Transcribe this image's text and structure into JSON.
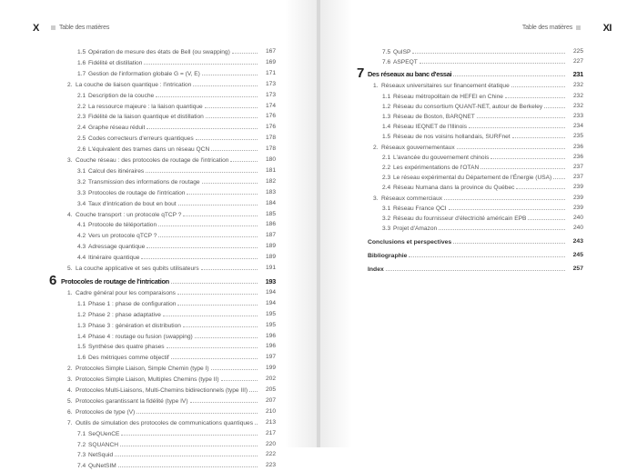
{
  "left_page": {
    "folio": "X",
    "running_head": "Table des matières",
    "entries": [
      {
        "level": 2,
        "num": "1.5",
        "title": "Opération de mesure des états de Bell (ou swapping)",
        "page": "167"
      },
      {
        "level": 2,
        "num": "1.6",
        "title": "Fidélité et distillation",
        "page": "169"
      },
      {
        "level": 2,
        "num": "1.7",
        "title": "Gestion de l'information globale G = (V, E)",
        "page": "171"
      },
      {
        "level": 1,
        "num": "2.",
        "title": "La couche de liaison quantique : l'intrication",
        "page": "173"
      },
      {
        "level": 2,
        "num": "2.1",
        "title": "Description de la couche",
        "page": "173"
      },
      {
        "level": 2,
        "num": "2.2",
        "title": "La ressource majeure : la liaison quantique",
        "page": "174"
      },
      {
        "level": 2,
        "num": "2.3",
        "title": "Fidélité de la liaison quantique et distillation",
        "page": "176"
      },
      {
        "level": 2,
        "num": "2.4",
        "title": "Graphe réseau réduit",
        "page": "176"
      },
      {
        "level": 2,
        "num": "2.5",
        "title": "Codes correcteurs d'erreurs quantiques",
        "page": "178"
      },
      {
        "level": 2,
        "num": "2.6",
        "title": "L'équivalent des trames dans un réseau QCN",
        "page": "178"
      },
      {
        "level": 1,
        "num": "3.",
        "title": "Couche réseau : des protocoles de routage de l'intrication",
        "page": "180"
      },
      {
        "level": 2,
        "num": "3.1",
        "title": "Calcul des itinéraires",
        "page": "181"
      },
      {
        "level": 2,
        "num": "3.2",
        "title": "Transmission des informations de routage",
        "page": "182"
      },
      {
        "level": 2,
        "num": "3.3",
        "title": "Protocoles de routage de l'intrication",
        "page": "183"
      },
      {
        "level": 2,
        "num": "3.4",
        "title": "Taux d'intrication de bout en bout",
        "page": "184"
      },
      {
        "level": 1,
        "num": "4.",
        "title": "Couche transport : un protocole qTCP ?",
        "page": "185"
      },
      {
        "level": 2,
        "num": "4.1",
        "title": "Protocole de téléportation",
        "page": "186"
      },
      {
        "level": 2,
        "num": "4.2",
        "title": "Vers un protocole qTCP ?",
        "page": "187"
      },
      {
        "level": 2,
        "num": "4.3",
        "title": "Adressage quantique",
        "page": "189"
      },
      {
        "level": 2,
        "num": "4.4",
        "title": "Itinéraire quantique",
        "page": "189"
      },
      {
        "level": 1,
        "num": "5.",
        "title": "La couche applicative et ses qubits utilisateurs",
        "page": "191"
      },
      {
        "level": "chapter",
        "num": "6",
        "title": "Protocoles de routage de l'intrication",
        "page": "193"
      },
      {
        "level": 1,
        "num": "1.",
        "title": "Cadre général pour les comparaisons",
        "page": "194"
      },
      {
        "level": 2,
        "num": "1.1",
        "title": "Phase 1 : phase de configuration",
        "page": "194"
      },
      {
        "level": 2,
        "num": "1.2",
        "title": "Phase 2 : phase adaptative",
        "page": "195"
      },
      {
        "level": 2,
        "num": "1.3",
        "title": "Phase 3 : génération et distribution",
        "page": "195"
      },
      {
        "level": 2,
        "num": "1.4",
        "title": "Phase 4 : routage ou fusion (swapping)",
        "page": "196"
      },
      {
        "level": 2,
        "num": "1.5",
        "title": "Synthèse des quatre phases",
        "page": "196"
      },
      {
        "level": 2,
        "num": "1.6",
        "title": "Des métriques comme objectif",
        "page": "197"
      },
      {
        "level": 1,
        "num": "2.",
        "title": "Protocoles Simple Liaison, Simple Chemin (type I)",
        "page": "199"
      },
      {
        "level": 1,
        "num": "3.",
        "title": "Protocoles Simple Liaison, Multiples Chemins (type II)",
        "page": "202"
      },
      {
        "level": 1,
        "num": "4.",
        "title": "Protocoles Multi-Liaisons, Multi-Chemins bidirectionnels (type III)",
        "page": "205"
      },
      {
        "level": 1,
        "num": "5.",
        "title": "Protocoles garantissant la fidélité (type IV)",
        "page": "207"
      },
      {
        "level": 1,
        "num": "6.",
        "title": "Protocoles de type (V)",
        "page": "210"
      },
      {
        "level": 1,
        "num": "7.",
        "title": "Outils de simulation des protocoles de communications quantiques",
        "page": "213"
      },
      {
        "level": 2,
        "num": "7.1",
        "title": "SeQUenCE",
        "page": "217"
      },
      {
        "level": 2,
        "num": "7.2",
        "title": "SQUANCH",
        "page": "220"
      },
      {
        "level": 2,
        "num": "7.3",
        "title": "NetSquid",
        "page": "222"
      },
      {
        "level": 2,
        "num": "7.4",
        "title": "QuNetSIM",
        "page": "223"
      }
    ]
  },
  "right_page": {
    "folio": "XI",
    "running_head": "Table des matières",
    "entries": [
      {
        "level": 2,
        "num": "7.5",
        "title": "QuISP",
        "page": "225"
      },
      {
        "level": 2,
        "num": "7.6",
        "title": "ASPEQT",
        "page": "227"
      },
      {
        "level": "chapter",
        "num": "7",
        "title": "Des réseaux au banc d'essai",
        "page": "231"
      },
      {
        "level": 1,
        "num": "1.",
        "title": "Réseaux universitaires sur financement étatique",
        "page": "232"
      },
      {
        "level": 2,
        "num": "1.1",
        "title": "Réseau métropolitain de HEFEI en Chine",
        "page": "232"
      },
      {
        "level": 2,
        "num": "1.2",
        "title": "Réseau du consortium QUANT-NET, autour de Berkeley",
        "page": "232"
      },
      {
        "level": 2,
        "num": "1.3",
        "title": "Réseau de Boston, BARQNET",
        "page": "233"
      },
      {
        "level": 2,
        "num": "1.4",
        "title": "Réseau IEQNET de l'Illinois",
        "page": "234"
      },
      {
        "level": 2,
        "num": "1.5",
        "title": "Réseau de nos voisins hollandais, SURFnet",
        "page": "235"
      },
      {
        "level": 1,
        "num": "2.",
        "title": "Réseaux gouvernementaux",
        "page": "236"
      },
      {
        "level": 2,
        "num": "2.1",
        "title": "L'avancée du gouvernement chinois",
        "page": "236"
      },
      {
        "level": 2,
        "num": "2.2",
        "title": "Les expérimentations de l'OTAN",
        "page": "237"
      },
      {
        "level": 2,
        "num": "2.3",
        "title": "Le réseau expérimental du Département de l'Énergie (USA)",
        "page": "237"
      },
      {
        "level": 2,
        "num": "2.4",
        "title": "Réseau Numana dans la province du Québec",
        "page": "239"
      },
      {
        "level": 1,
        "num": "3.",
        "title": "Réseaux commerciaux",
        "page": "239"
      },
      {
        "level": 2,
        "num": "3.1",
        "title": "Réseau France QCI",
        "page": "239"
      },
      {
        "level": 2,
        "num": "3.2",
        "title": "Réseau du fournisseur d'électricité américain EPB",
        "page": "240"
      },
      {
        "level": 2,
        "num": "3.3",
        "title": "Projet d'Amazon",
        "page": "240"
      },
      {
        "level": "section",
        "num": "",
        "title": "Conclusions et perspectives",
        "page": "243"
      },
      {
        "level": "section",
        "num": "",
        "title": "Bibliographie",
        "page": "245"
      },
      {
        "level": "section",
        "num": "",
        "title": "Index",
        "page": "257"
      }
    ]
  }
}
